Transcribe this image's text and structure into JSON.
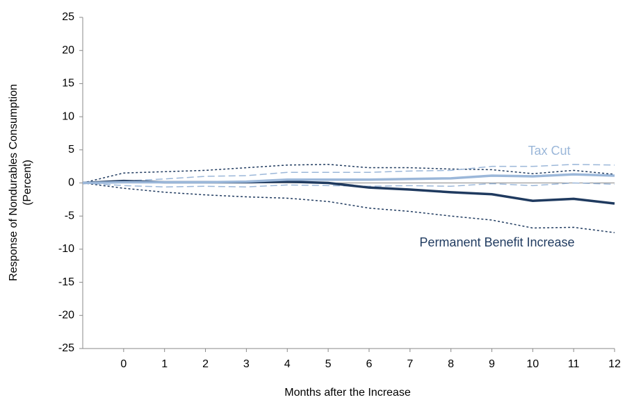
{
  "chart_data": {
    "type": "line",
    "y_label": [
      "Response of Nondurables Consumption",
      "(Percent)"
    ],
    "x_label": "Months after the Increase",
    "x": [
      -1,
      0,
      1,
      2,
      3,
      4,
      5,
      6,
      7,
      8,
      9,
      10,
      11,
      12
    ],
    "xlim": [
      -1,
      12
    ],
    "xticks": [
      0,
      1,
      2,
      3,
      4,
      5,
      6,
      7,
      8,
      9,
      10,
      11,
      12
    ],
    "ylim": [
      -25,
      25
    ],
    "yticks": [
      -25,
      -20,
      -15,
      -10,
      -5,
      0,
      5,
      10,
      15,
      20,
      25
    ],
    "series": [
      {
        "name": "Permanent Benefit Increase",
        "color": "#1f3a5f",
        "style": "solid",
        "values": [
          0,
          0.3,
          0.1,
          0.1,
          0.1,
          0.2,
          0,
          -0.7,
          -1.0,
          -1.4,
          -1.7,
          -2.7,
          -2.4,
          -3.1
        ]
      },
      {
        "color": "#1f3a5f",
        "style": "dotted",
        "values": [
          0,
          1.5,
          1.7,
          1.9,
          2.3,
          2.7,
          2.8,
          2.3,
          2.3,
          2.1,
          2.0,
          1.4,
          1.9,
          1.3
        ]
      },
      {
        "color": "#1f3a5f",
        "style": "dotted",
        "values": [
          0,
          -0.8,
          -1.4,
          -1.8,
          -2.1,
          -2.3,
          -2.8,
          -3.8,
          -4.3,
          -5.0,
          -5.6,
          -6.8,
          -6.7,
          -7.5
        ]
      },
      {
        "name": "Tax Cut",
        "color": "#9bb7d9",
        "style": "solid",
        "values": [
          0,
          0.1,
          0.1,
          0.1,
          0.2,
          0.5,
          0.5,
          0.5,
          0.6,
          0.7,
          1.1,
          1.0,
          1.3,
          1.1
        ]
      },
      {
        "color": "#9bb7d9",
        "style": "dashed",
        "values": [
          0,
          0.3,
          0.6,
          1.0,
          1.1,
          1.6,
          1.6,
          1.6,
          1.8,
          1.9,
          2.5,
          2.5,
          2.8,
          2.7
        ]
      },
      {
        "color": "#9bb7d9",
        "style": "dashed",
        "values": [
          0,
          -0.4,
          -0.6,
          -0.5,
          -0.6,
          -0.3,
          -0.4,
          -0.5,
          -0.4,
          -0.5,
          -0.1,
          -0.4,
          0,
          -0.2
        ]
      }
    ]
  }
}
